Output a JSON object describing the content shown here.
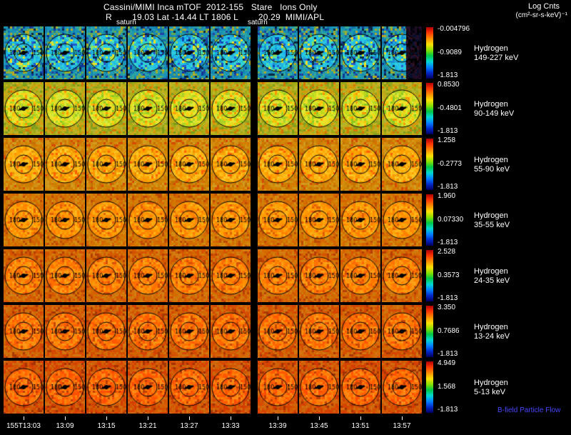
{
  "header": {
    "title_line1": "Cassini/MIMI Inca mTOF  2012-155   Stare   Ions Only",
    "title_line2": "R        19.03 Lat -14.44 LT 1806 L        20.29  MIMI/APL",
    "units_line1": "Log Cnts",
    "units_line2": "(cm²-sr-s-keV)⁻¹",
    "pointing_labels": [
      "saturn",
      "saturn"
    ]
  },
  "chart_data": {
    "type": "heatmap",
    "title": "Cassini/MIMI Inca mTOF 2012-155 Stare Ions Only",
    "subtitle": "R 19.03 Lat -14.44 LT 1806 L 20.29 MIMI/APL",
    "colorbar_units": "Log Cnts (cm²-sr-s-keV)⁻¹",
    "x_tick_labels": [
      "155T13:03",
      "13:09",
      "13:15",
      "13:21",
      "13:27",
      "13:33",
      "13:39",
      "13:45",
      "13:51",
      "13:57"
    ],
    "columns_per_row": 10,
    "contour_labels": [
      "180",
      "150"
    ],
    "annotation_bfield": "B-field Particle Flow",
    "colorbar_colors": [
      "#b00000",
      "#ff3800",
      "#ff8c00",
      "#ffe000",
      "#8ce000",
      "#00c846",
      "#00d8d2",
      "#0080ff",
      "#0028c8",
      "#000060"
    ],
    "rows": [
      {
        "species": "Hydrogen",
        "band": "149-227 keV",
        "scale_max": "-0.004796",
        "scale_mid": "-0.9089",
        "scale_min": "-1.813",
        "palette": [
          "#20c0e8",
          "#28c8e0",
          "#18b0e0",
          "#30d0d8",
          "#20a8d8",
          "#38d8c8",
          "#50dfb0",
          "#1890d0",
          "#2858c8",
          "#88e060",
          "#c8e838",
          "#f0e028",
          "#1048b8",
          "#28c0f0",
          "#20b8e8",
          "#30c8d8",
          "#083048"
        ]
      },
      {
        "species": "Hydrogen",
        "band": "90-149 keV",
        "scale_max": "0.8530",
        "scale_mid": "-0.4801",
        "scale_min": "-1.813",
        "palette": [
          "#ccdf20",
          "#d8e428",
          "#c0d818",
          "#e4e830",
          "#b8d820",
          "#f0e028",
          "#ffd018",
          "#a8d028",
          "#ffc008",
          "#d0e840",
          "#90c820",
          "#e8d820",
          "#ff9800"
        ]
      },
      {
        "species": "Hydrogen",
        "band": "55-90 keV",
        "scale_max": "1.258",
        "scale_mid": "-0.2773",
        "scale_min": "-1.813",
        "palette": [
          "#ffb410",
          "#ffac08",
          "#ffbc18",
          "#ffa400",
          "#ff9c00",
          "#f8c020",
          "#ff9400",
          "#ffc828",
          "#f0a808",
          "#ff6000",
          "#e89000"
        ]
      },
      {
        "species": "Hydrogen",
        "band": "35-55 keV",
        "scale_max": "1.960",
        "scale_mid": "0.07330",
        "scale_min": "-1.813",
        "palette": [
          "#ff9c00",
          "#ff9400",
          "#ffa408",
          "#ff8c00",
          "#ff8400",
          "#f8a810",
          "#ff7c00",
          "#ffb418",
          "#e06000"
        ]
      },
      {
        "species": "Hydrogen",
        "band": "24-35 keV",
        "scale_max": "2.528",
        "scale_mid": "0.3573",
        "scale_min": "-1.813",
        "palette": [
          "#ff8c00",
          "#ff8400",
          "#ff9408",
          "#ff7800",
          "#ff7000",
          "#f89c10",
          "#ff6800",
          "#ffa018",
          "#d85000"
        ]
      },
      {
        "species": "Hydrogen",
        "band": "13-24 keV",
        "scale_max": "3.350",
        "scale_mid": "0.7686",
        "scale_min": "-1.813",
        "palette": [
          "#ff8000",
          "#ff7400",
          "#ff8808",
          "#ff6800",
          "#ff6000",
          "#f89010",
          "#ff5800",
          "#ff9818",
          "#c84800"
        ]
      },
      {
        "species": "Hydrogen",
        "band": "5-13 keV",
        "scale_max": "4.949",
        "scale_mid": "1.568",
        "scale_min": "-1.813",
        "palette": [
          "#ff7400",
          "#ff6800",
          "#ff7c08",
          "#ff5c00",
          "#ff5400",
          "#f88410",
          "#ff4c00",
          "#ff8c18",
          "#c04000"
        ]
      }
    ]
  }
}
